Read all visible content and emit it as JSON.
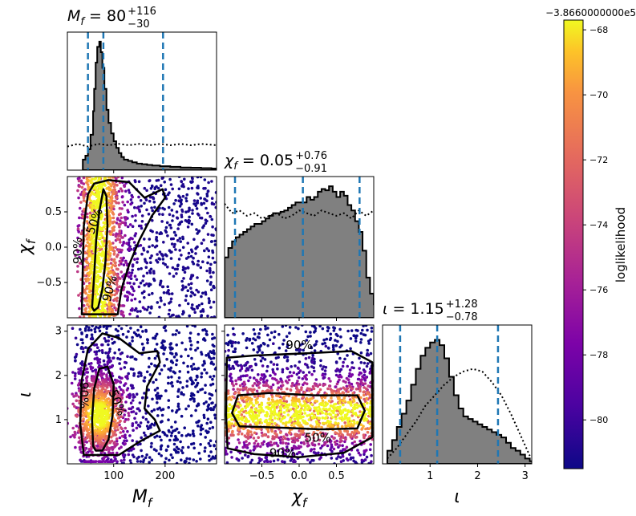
{
  "figure": {
    "colorbar": {
      "label": "loglikelihood",
      "offset_label": "−3.8660000000e5",
      "ticks": [
        -80,
        -78,
        -76,
        -74,
        -72,
        -70,
        -68
      ],
      "tick_labels": [
        "−80",
        "−78",
        "−76",
        "−74",
        "−72",
        "−70",
        "−68"
      ],
      "range": [
        -81.5,
        -67.7
      ],
      "colormap": "plasma"
    }
  },
  "chart_data": [
    {
      "panel": "Mf-marginal",
      "type": "bar",
      "title": {
        "main": "M",
        "sub": "f",
        "eq": " = 80",
        "sup": "+116",
        "low": "−30"
      },
      "xlim": [
        10,
        300
      ],
      "bins": [
        [
          40,
          0.08
        ],
        [
          45,
          0.11
        ],
        [
          50,
          0.16
        ],
        [
          55,
          0.27
        ],
        [
          60,
          0.45
        ],
        [
          62,
          0.62
        ],
        [
          65,
          0.82
        ],
        [
          68,
          0.94
        ],
        [
          72,
          0.98
        ],
        [
          75,
          0.9
        ],
        [
          78,
          0.78
        ],
        [
          82,
          0.62
        ],
        [
          86,
          0.46
        ],
        [
          90,
          0.36
        ],
        [
          95,
          0.28
        ],
        [
          100,
          0.22
        ],
        [
          105,
          0.17
        ],
        [
          110,
          0.13
        ],
        [
          115,
          0.1
        ],
        [
          120,
          0.08
        ],
        [
          128,
          0.07
        ],
        [
          136,
          0.06
        ],
        [
          145,
          0.05
        ],
        [
          155,
          0.045
        ],
        [
          165,
          0.04
        ],
        [
          175,
          0.035
        ],
        [
          190,
          0.03
        ],
        [
          210,
          0.025
        ],
        [
          230,
          0.02
        ],
        [
          250,
          0.018
        ],
        [
          270,
          0.015
        ],
        [
          290,
          0.012
        ],
        [
          300,
          0.01
        ]
      ],
      "prior": [
        [
          10,
          0.18
        ],
        [
          30,
          0.2
        ],
        [
          50,
          0.18
        ],
        [
          70,
          0.2
        ],
        [
          90,
          0.19
        ],
        [
          110,
          0.2
        ],
        [
          130,
          0.19
        ],
        [
          150,
          0.2
        ],
        [
          170,
          0.19
        ],
        [
          190,
          0.2
        ],
        [
          210,
          0.19
        ],
        [
          230,
          0.2
        ],
        [
          250,
          0.19
        ],
        [
          270,
          0.2
        ],
        [
          300,
          0.19
        ]
      ],
      "quantile_lines": [
        50,
        80,
        196
      ]
    },
    {
      "panel": "chif-marginal",
      "type": "bar",
      "title": {
        "main": "χ",
        "sub": "f",
        "eq": " = 0.05",
        "sup": "+0.76",
        "low": "−0.91"
      },
      "xlim": [
        -1,
        1
      ],
      "bins": [
        [
          -1.0,
          0.45
        ],
        [
          -0.95,
          0.52
        ],
        [
          -0.9,
          0.57
        ],
        [
          -0.85,
          0.6
        ],
        [
          -0.8,
          0.62
        ],
        [
          -0.75,
          0.64
        ],
        [
          -0.7,
          0.66
        ],
        [
          -0.65,
          0.68
        ],
        [
          -0.6,
          0.7
        ],
        [
          -0.55,
          0.7
        ],
        [
          -0.5,
          0.72
        ],
        [
          -0.45,
          0.74
        ],
        [
          -0.4,
          0.76
        ],
        [
          -0.35,
          0.78
        ],
        [
          -0.3,
          0.78
        ],
        [
          -0.25,
          0.79
        ],
        [
          -0.2,
          0.8
        ],
        [
          -0.15,
          0.82
        ],
        [
          -0.1,
          0.84
        ],
        [
          -0.05,
          0.86
        ],
        [
          0.0,
          0.86
        ],
        [
          0.05,
          0.86
        ],
        [
          0.1,
          0.9
        ],
        [
          0.15,
          0.88
        ],
        [
          0.2,
          0.9
        ],
        [
          0.25,
          0.94
        ],
        [
          0.3,
          0.96
        ],
        [
          0.35,
          0.95
        ],
        [
          0.4,
          0.98
        ],
        [
          0.45,
          0.94
        ],
        [
          0.5,
          0.9
        ],
        [
          0.55,
          0.94
        ],
        [
          0.6,
          0.91
        ],
        [
          0.65,
          0.84
        ],
        [
          0.7,
          0.8
        ],
        [
          0.75,
          0.72
        ],
        [
          0.8,
          0.64
        ],
        [
          0.85,
          0.5
        ],
        [
          0.9,
          0.3
        ],
        [
          0.95,
          0.18
        ],
        [
          1.0,
          0.1
        ]
      ],
      "prior": [
        [
          -1.0,
          0.85
        ],
        [
          -0.9,
          0.78
        ],
        [
          -0.8,
          0.8
        ],
        [
          -0.7,
          0.76
        ],
        [
          -0.6,
          0.78
        ],
        [
          -0.5,
          0.74
        ],
        [
          -0.4,
          0.76
        ],
        [
          -0.3,
          0.78
        ],
        [
          -0.2,
          0.74
        ],
        [
          -0.1,
          0.76
        ],
        [
          0.0,
          0.8
        ],
        [
          0.1,
          0.78
        ],
        [
          0.2,
          0.76
        ],
        [
          0.3,
          0.8
        ],
        [
          0.4,
          0.78
        ],
        [
          0.5,
          0.76
        ],
        [
          0.6,
          0.78
        ],
        [
          0.7,
          0.74
        ],
        [
          0.8,
          0.8
        ],
        [
          0.9,
          0.76
        ],
        [
          1.0,
          0.8
        ]
      ],
      "quantile_lines": [
        -0.86,
        0.05,
        0.81
      ]
    },
    {
      "panel": "iota-marginal",
      "type": "bar",
      "title": {
        "main": "ι",
        "sub": "",
        "eq": " = 1.15",
        "sup": "+1.28",
        "low": "−0.78"
      },
      "xlim": [
        0,
        3.14
      ],
      "xlabel": "ι",
      "xticks": [
        1,
        2,
        3
      ],
      "bins": [
        [
          0.1,
          0.1
        ],
        [
          0.2,
          0.18
        ],
        [
          0.3,
          0.28
        ],
        [
          0.4,
          0.38
        ],
        [
          0.5,
          0.48
        ],
        [
          0.6,
          0.6
        ],
        [
          0.7,
          0.72
        ],
        [
          0.8,
          0.82
        ],
        [
          0.9,
          0.88
        ],
        [
          1.0,
          0.92
        ],
        [
          1.1,
          0.94
        ],
        [
          1.2,
          0.9
        ],
        [
          1.3,
          0.8
        ],
        [
          1.4,
          0.66
        ],
        [
          1.5,
          0.52
        ],
        [
          1.6,
          0.42
        ],
        [
          1.7,
          0.36
        ],
        [
          1.8,
          0.34
        ],
        [
          1.9,
          0.32
        ],
        [
          2.0,
          0.3
        ],
        [
          2.1,
          0.28
        ],
        [
          2.2,
          0.26
        ],
        [
          2.3,
          0.24
        ],
        [
          2.4,
          0.22
        ],
        [
          2.5,
          0.2
        ],
        [
          2.6,
          0.16
        ],
        [
          2.7,
          0.12
        ],
        [
          2.8,
          0.1
        ],
        [
          2.9,
          0.07
        ],
        [
          3.0,
          0.04
        ],
        [
          3.1,
          0.02
        ]
      ],
      "prior": [
        [
          0.1,
          0.04
        ],
        [
          0.3,
          0.12
        ],
        [
          0.5,
          0.22
        ],
        [
          0.7,
          0.32
        ],
        [
          0.9,
          0.44
        ],
        [
          1.1,
          0.52
        ],
        [
          1.3,
          0.6
        ],
        [
          1.5,
          0.66
        ],
        [
          1.7,
          0.7
        ],
        [
          1.9,
          0.72
        ],
        [
          2.1,
          0.7
        ],
        [
          2.3,
          0.62
        ],
        [
          2.5,
          0.52
        ],
        [
          2.7,
          0.38
        ],
        [
          2.9,
          0.22
        ],
        [
          3.1,
          0.06
        ]
      ],
      "quantile_lines": [
        0.37,
        1.15,
        2.43
      ]
    },
    {
      "panel": "Mf-chif-scatter",
      "type": "scatter",
      "xlim": [
        10,
        300
      ],
      "ylim": [
        -1,
        1
      ],
      "ylabel": "χ",
      "ylabel_sub": "f",
      "yticks": [
        -0.5,
        0,
        0.5
      ],
      "ytick_labels": [
        "−0.5",
        "0.0",
        "0.5"
      ],
      "contour_labels": [
        "50%",
        "90%",
        "90%"
      ],
      "contour_50": [
        [
          58,
          -0.85
        ],
        [
          62,
          -0.4
        ],
        [
          66,
          0.1
        ],
        [
          72,
          0.5
        ],
        [
          80,
          0.82
        ],
        [
          86,
          0.72
        ],
        [
          88,
          0.3
        ],
        [
          84,
          -0.2
        ],
        [
          78,
          -0.6
        ],
        [
          70,
          -0.85
        ],
        [
          62,
          -0.9
        ]
      ],
      "contour_90": [
        [
          38,
          -0.95
        ],
        [
          40,
          -0.3
        ],
        [
          42,
          0.3
        ],
        [
          50,
          0.75
        ],
        [
          62,
          0.9
        ],
        [
          90,
          0.95
        ],
        [
          130,
          0.92
        ],
        [
          160,
          0.7
        ],
        [
          195,
          0.82
        ],
        [
          200,
          0.7
        ],
        [
          175,
          0.45
        ],
        [
          150,
          0.1
        ],
        [
          130,
          -0.25
        ],
        [
          115,
          -0.6
        ],
        [
          108,
          -0.95
        ]
      ]
    },
    {
      "panel": "Mf-iota-scatter",
      "type": "scatter",
      "xlim": [
        10,
        300
      ],
      "ylim": [
        0,
        3.14
      ],
      "xlabel": "M",
      "xlabel_sub": "f",
      "ylabel": "ι",
      "xticks": [
        100,
        200
      ],
      "yticks": [
        1,
        2,
        3
      ],
      "contour_labels": [
        "50%",
        "90%"
      ],
      "contour_50": [
        [
          60,
          0.4
        ],
        [
          58,
          1.0
        ],
        [
          62,
          1.7
        ],
        [
          72,
          2.15
        ],
        [
          88,
          2.2
        ],
        [
          100,
          1.8
        ],
        [
          98,
          1.1
        ],
        [
          90,
          0.55
        ],
        [
          78,
          0.3
        ],
        [
          65,
          0.3
        ]
      ],
      "contour_90": [
        [
          42,
          0.2
        ],
        [
          35,
          0.9
        ],
        [
          38,
          1.9
        ],
        [
          50,
          2.6
        ],
        [
          78,
          2.95
        ],
        [
          110,
          2.85
        ],
        [
          150,
          2.5
        ],
        [
          185,
          2.55
        ],
        [
          190,
          2.3
        ],
        [
          165,
          1.75
        ],
        [
          160,
          1.25
        ],
        [
          180,
          1.0
        ],
        [
          190,
          0.75
        ],
        [
          150,
          0.5
        ],
        [
          110,
          0.2
        ]
      ]
    },
    {
      "panel": "chif-iota-scatter",
      "type": "scatter",
      "xlim": [
        -1,
        1
      ],
      "ylim": [
        0,
        3.14
      ],
      "xlabel": "χ",
      "xlabel_sub": "f",
      "xticks": [
        -0.5,
        0,
        0.5
      ],
      "xtick_labels": [
        "−0.5",
        "0.0",
        "0.5"
      ],
      "contour_labels": [
        "90%",
        "50%",
        "90%"
      ],
      "contour_50": [
        [
          -0.9,
          1.15
        ],
        [
          -0.82,
          1.55
        ],
        [
          -0.4,
          1.6
        ],
        [
          0.2,
          1.55
        ],
        [
          0.78,
          1.55
        ],
        [
          0.88,
          1.2
        ],
        [
          0.78,
          0.8
        ],
        [
          0.3,
          0.78
        ],
        [
          -0.3,
          0.82
        ],
        [
          -0.8,
          0.85
        ]
      ],
      "contour_90": [
        [
          -0.98,
          1.1
        ],
        [
          -0.97,
          2.4
        ],
        [
          -0.6,
          2.45
        ],
        [
          0.1,
          2.5
        ],
        [
          0.7,
          2.55
        ],
        [
          0.98,
          2.3
        ],
        [
          0.98,
          0.6
        ],
        [
          0.6,
          0.25
        ],
        [
          0.0,
          0.15
        ],
        [
          -0.6,
          0.22
        ],
        [
          -0.96,
          0.35
        ]
      ]
    }
  ]
}
